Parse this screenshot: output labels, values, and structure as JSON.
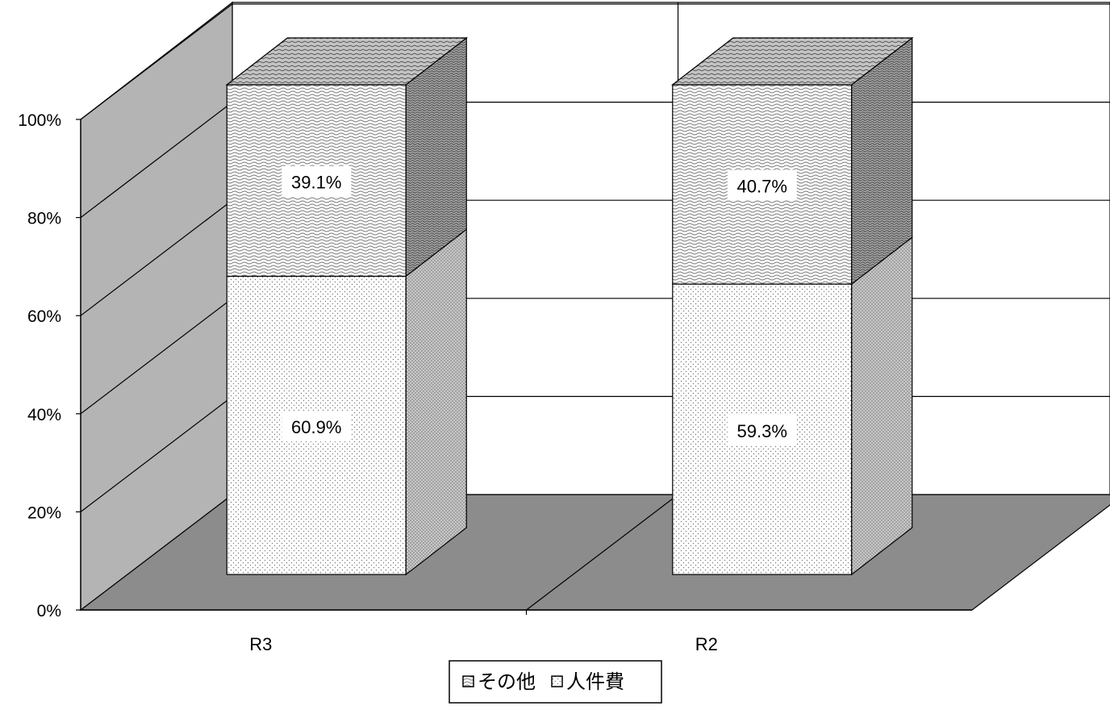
{
  "chart_data": {
    "type": "bar",
    "stacked": true,
    "three_d": true,
    "categories": [
      "R3",
      "R2"
    ],
    "series": [
      {
        "name": "人件費",
        "values": [
          60.9,
          59.3
        ],
        "labels": [
          "60.9%",
          "59.3%"
        ],
        "pattern": "dots",
        "color": "#ffffff"
      },
      {
        "name": "その他",
        "values": [
          39.1,
          40.7
        ],
        "labels": [
          "39.1%",
          "40.7%"
        ],
        "pattern": "waves",
        "color": "#ffffff"
      }
    ],
    "yticks": [
      "0%",
      "20%",
      "40%",
      "60%",
      "80%",
      "100%"
    ],
    "ylim": [
      0,
      100
    ],
    "grid": true,
    "legend": "bottom-center",
    "legend_order": [
      "その他",
      "人件費"
    ],
    "colors": {
      "wall": "#b4b4b4",
      "floor": "#8c8c8c",
      "back_wall": "#ffffff"
    }
  }
}
